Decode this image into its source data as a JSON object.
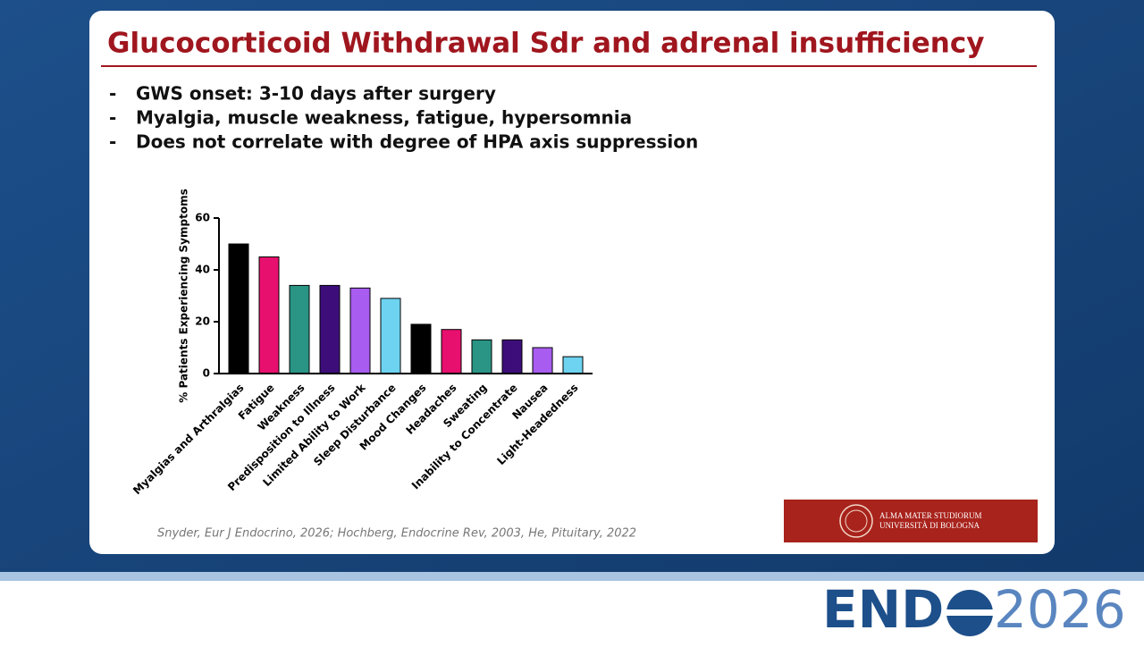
{
  "slide": {
    "title": "Glucocorticoid Withdrawal Sdr and adrenal insufficiency",
    "bullets": [
      {
        "marker": "-",
        "text": "GWS onset: 3-10 days after surgery"
      },
      {
        "marker": "-",
        "text": "Myalgia, muscle weakness, fatigue, hypersomnia"
      },
      {
        "marker": "-",
        "text": "Does not correlate with degree of HPA axis suppression"
      }
    ],
    "citation": "Snyder, Eur J Endocrino, 2026; Hochberg, Endocrine Rev, 2003, He, Pituitary, 2022",
    "university": [
      "ALMA MATER STUDIORUM",
      "UNIVERSITÀ DI BOLOGNA"
    ],
    "event_logo": [
      "END",
      "2026"
    ]
  },
  "chart_data": {
    "type": "bar",
    "y_label": "% Patients Experiencing Symptoms",
    "categories": [
      "Myalgias and Arthralgias",
      "Fatigue",
      "Weakness",
      "Predisposition to Illness",
      "Limited Ability to Work",
      "Sleep Disturbance",
      "Mood Changes",
      "Headaches",
      "Sweating",
      "Inability to Concentrate",
      "Nausea",
      "Light-Headedness"
    ],
    "values": [
      50,
      45,
      34,
      34,
      33,
      29,
      19,
      17,
      13,
      13,
      10,
      6.5
    ],
    "colors": [
      "#000000",
      "#e8106e",
      "#2a9585",
      "#3d0e7a",
      "#a85cf0",
      "#6dd3f0",
      "#000000",
      "#e8106e",
      "#2a9585",
      "#3d0e7a",
      "#a85cf0",
      "#6dd3f0"
    ],
    "ylim": [
      0,
      60
    ],
    "yticks": [
      0,
      20,
      40,
      60
    ]
  }
}
